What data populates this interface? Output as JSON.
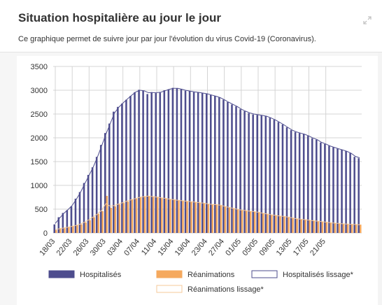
{
  "header": {
    "title": "Situation hospitalière au jour le jour",
    "subtitle": "Ce graphique permet de suivre jour par jour l'évolution du virus Covid-19 (Coronavirus).",
    "expand_icon": "expand-icon"
  },
  "colors": {
    "hospitalises": "#4e4d8e",
    "reanimations": "#f5a95e",
    "hospitalises_lissage": "#4e4d8e",
    "reanimations_lissage": "#f5c99a",
    "grid": "#d4d4d4"
  },
  "chart_data": {
    "type": "bar",
    "x_tick_labels": [
      "18/03",
      "22/03",
      "26/03",
      "30/03",
      "03/04",
      "07/04",
      "11/04",
      "15/04",
      "19/04",
      "23/04",
      "27/04",
      "01/05",
      "05/05",
      "09/05",
      "13/05",
      "17/05",
      "21/05"
    ],
    "ylim": [
      0,
      3500
    ],
    "yticks": [
      0,
      500,
      1000,
      1500,
      2000,
      2500,
      3000,
      3500
    ],
    "grid": true,
    "legend_position": "bottom",
    "series": [
      {
        "name": "Hospitalisés",
        "kind": "bar",
        "values": [
          180,
          330,
          420,
          480,
          560,
          720,
          860,
          1050,
          1220,
          1380,
          1600,
          1850,
          2100,
          2300,
          2550,
          2650,
          2720,
          2800,
          2880,
          2960,
          3010,
          2990,
          2920,
          2960,
          2940,
          2950,
          3000,
          3020,
          3050,
          3040,
          3020,
          2990,
          2980,
          2960,
          2960,
          2940,
          2930,
          2900,
          2880,
          2850,
          2800,
          2750,
          2700,
          2660,
          2600,
          2560,
          2520,
          2490,
          2480,
          2470,
          2460,
          2420,
          2380,
          2330,
          2280,
          2220,
          2160,
          2120,
          2100,
          2080,
          2040,
          1990,
          1960,
          1900,
          1870,
          1830,
          1800,
          1770,
          1750,
          1720,
          1680,
          1600,
          1570
        ]
      },
      {
        "name": "Réanimations",
        "kind": "bar",
        "values": [
          60,
          90,
          100,
          120,
          140,
          160,
          180,
          220,
          270,
          330,
          400,
          460,
          780,
          530,
          560,
          600,
          630,
          660,
          700,
          720,
          750,
          760,
          780,
          770,
          760,
          740,
          730,
          710,
          700,
          690,
          680,
          670,
          660,
          650,
          640,
          630,
          610,
          600,
          600,
          590,
          560,
          540,
          520,
          500,
          480,
          470,
          460,
          450,
          440,
          420,
          400,
          380,
          370,
          360,
          350,
          340,
          320,
          300,
          290,
          280,
          270,
          260,
          250,
          240,
          230,
          220,
          210,
          200,
          190,
          190,
          185,
          180,
          175
        ]
      },
      {
        "name": "Hospitalisés lissage*",
        "kind": "line",
        "values": [
          200,
          310,
          410,
          490,
          580,
          710,
          860,
          1040,
          1210,
          1390,
          1600,
          1840,
          2080,
          2300,
          2520,
          2640,
          2730,
          2810,
          2890,
          2960,
          3000,
          2990,
          2950,
          2950,
          2950,
          2960,
          2990,
          3020,
          3040,
          3040,
          3020,
          2995,
          2980,
          2965,
          2955,
          2940,
          2925,
          2900,
          2875,
          2845,
          2800,
          2750,
          2705,
          2660,
          2605,
          2560,
          2525,
          2500,
          2485,
          2470,
          2455,
          2420,
          2380,
          2330,
          2280,
          2220,
          2165,
          2125,
          2100,
          2075,
          2040,
          1995,
          1960,
          1905,
          1870,
          1830,
          1800,
          1770,
          1745,
          1715,
          1675,
          1610,
          1580
        ]
      },
      {
        "name": "Réanimations lissage*",
        "kind": "line",
        "values": [
          70,
          90,
          105,
          120,
          140,
          160,
          190,
          230,
          280,
          340,
          400,
          480,
          620,
          560,
          580,
          610,
          640,
          670,
          700,
          725,
          750,
          765,
          775,
          765,
          755,
          740,
          728,
          712,
          700,
          688,
          678,
          668,
          658,
          648,
          638,
          628,
          612,
          602,
          596,
          585,
          560,
          540,
          520,
          500,
          482,
          470,
          458,
          448,
          436,
          418,
          400,
          382,
          370,
          358,
          348,
          336,
          318,
          300,
          290,
          280,
          270,
          258,
          248,
          238,
          228,
          218,
          208,
          200,
          192,
          188,
          183,
          178,
          174
        ]
      }
    ]
  }
}
